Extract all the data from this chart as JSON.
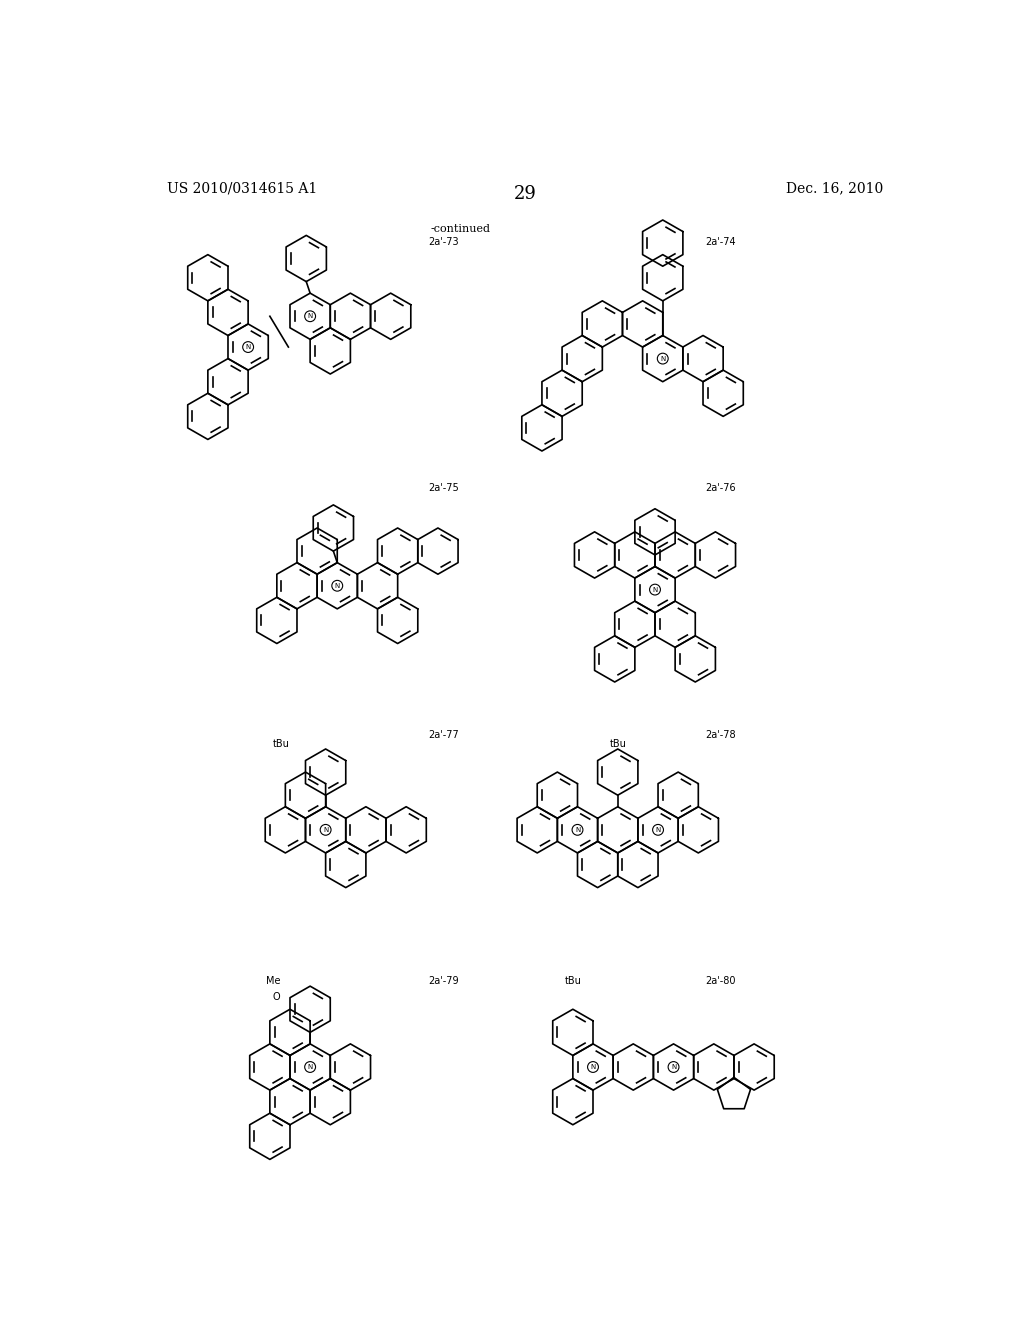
{
  "page_number": "29",
  "patent_number": "US 2010/0314615 A1",
  "date": "Dec. 16, 2010",
  "continued_label": "-continued",
  "background_color": "#ffffff",
  "text_color": "#000000",
  "line_color": "#000000",
  "label_73": "2a'-73",
  "label_74": "2a'-74",
  "label_75": "2a'-75",
  "label_76": "2a'-76",
  "label_77": "2a'-77",
  "label_78": "2a'-78",
  "label_79": "2a'-79",
  "label_80": "2a'-80"
}
